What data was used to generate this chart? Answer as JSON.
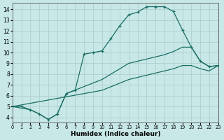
{
  "xlabel": "Humidex (Indice chaleur)",
  "bg_color": "#c8e8e8",
  "grid_color": "#b0d0d0",
  "line_color": "#1a6e64",
  "xlim": [
    0,
    23
  ],
  "ylim": [
    3.5,
    14.6
  ],
  "xticks": [
    0,
    1,
    2,
    3,
    4,
    5,
    6,
    7,
    8,
    9,
    10,
    11,
    12,
    13,
    14,
    15,
    16,
    17,
    18,
    19,
    20,
    21,
    22,
    23
  ],
  "yticks": [
    4,
    5,
    6,
    7,
    8,
    9,
    10,
    11,
    12,
    13,
    14
  ],
  "curve1_x": [
    0,
    1,
    2,
    3,
    4,
    5,
    6,
    7,
    8,
    9,
    10,
    11,
    12,
    13,
    14,
    15,
    16,
    17,
    18,
    19,
    20,
    21,
    22,
    23
  ],
  "curve1_y": [
    5.0,
    5.0,
    4.7,
    4.3,
    3.8,
    4.3,
    6.2,
    6.5,
    9.85,
    10.0,
    10.15,
    11.3,
    12.5,
    13.5,
    13.75,
    14.25,
    14.25,
    14.25,
    13.8,
    12.1,
    10.5,
    9.2,
    8.7,
    8.8
  ],
  "curve2_x": [
    0,
    2,
    3,
    4,
    5,
    6,
    10,
    13,
    14,
    15,
    16,
    17,
    18,
    19,
    20,
    21,
    22,
    23
  ],
  "curve2_y": [
    5.0,
    4.7,
    4.3,
    3.8,
    4.3,
    6.2,
    7.5,
    9.0,
    9.2,
    9.4,
    9.6,
    9.8,
    10.1,
    10.5,
    10.5,
    9.2,
    8.7,
    8.8
  ],
  "curve3_x": [
    0,
    10,
    13,
    14,
    15,
    16,
    17,
    18,
    19,
    20,
    21,
    22,
    23
  ],
  "curve3_y": [
    5.0,
    6.5,
    7.5,
    7.7,
    7.9,
    8.1,
    8.3,
    8.5,
    8.8,
    8.8,
    8.5,
    8.3,
    8.8
  ]
}
